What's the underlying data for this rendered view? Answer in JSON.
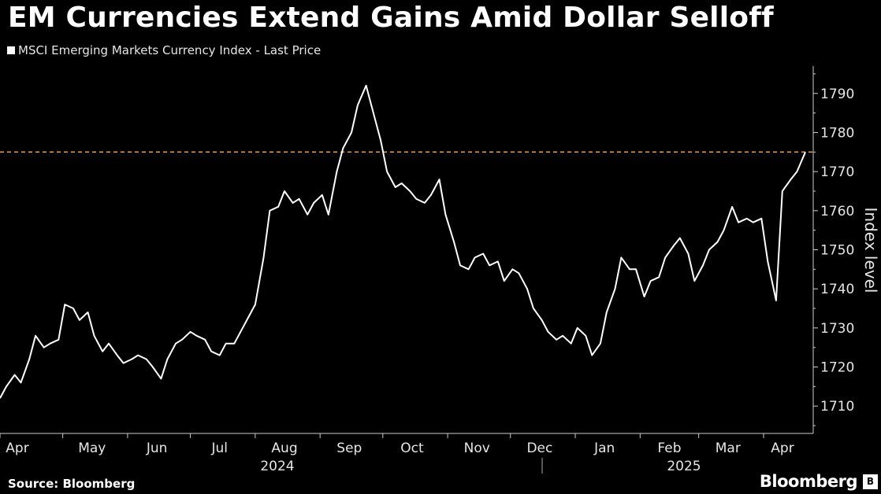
{
  "header": {
    "title": "EM Currencies Extend Gains Amid Dollar Selloff"
  },
  "footer": {
    "source": "Source: Bloomberg",
    "brand": "Bloomberg"
  },
  "colors": {
    "background": "#000000",
    "line": "#ffffff",
    "reference_line": "#e89a52",
    "axis": "#cccccc"
  },
  "chart_data": {
    "type": "line",
    "title": "EM Currencies Extend Gains Amid Dollar Selloff",
    "legend": [
      "MSCI Emerging Markets Currency Index - Last Price"
    ],
    "legend_position": "top-left",
    "ylabel": "Index level",
    "y_axis_side": "right",
    "ylim": [
      1703,
      1797
    ],
    "y_ticks": [
      1710,
      1720,
      1730,
      1740,
      1750,
      1760,
      1770,
      1780,
      1790
    ],
    "grid": false,
    "x_month_labels": [
      "Apr",
      "May",
      "Jun",
      "Jul",
      "Aug",
      "Sep",
      "Oct",
      "Nov",
      "Dec",
      "Jan",
      "Feb",
      "Mar",
      "Apr"
    ],
    "x_year_labels": [
      "2024",
      "2025"
    ],
    "reference_line": {
      "y": 1775,
      "style": "dashed"
    },
    "series": [
      {
        "name": "MSCI Emerging Markets Currency Index - Last Price",
        "x": [
          "2024-04-01",
          "2024-04-04",
          "2024-04-08",
          "2024-04-11",
          "2024-04-15",
          "2024-04-18",
          "2024-04-22",
          "2024-04-25",
          "2024-04-29",
          "2024-05-02",
          "2024-05-06",
          "2024-05-09",
          "2024-05-13",
          "2024-05-16",
          "2024-05-20",
          "2024-05-23",
          "2024-05-27",
          "2024-05-30",
          "2024-06-03",
          "2024-06-06",
          "2024-06-10",
          "2024-06-13",
          "2024-06-17",
          "2024-06-20",
          "2024-06-24",
          "2024-06-27",
          "2024-07-01",
          "2024-07-04",
          "2024-07-08",
          "2024-07-11",
          "2024-07-15",
          "2024-07-18",
          "2024-07-22",
          "2024-07-25",
          "2024-07-29",
          "2024-08-01",
          "2024-08-05",
          "2024-08-08",
          "2024-08-12",
          "2024-08-15",
          "2024-08-19",
          "2024-08-22",
          "2024-08-26",
          "2024-08-29",
          "2024-09-02",
          "2024-09-05",
          "2024-09-09",
          "2024-09-12",
          "2024-09-16",
          "2024-09-19",
          "2024-09-23",
          "2024-09-26",
          "2024-09-30",
          "2024-10-03",
          "2024-10-07",
          "2024-10-10",
          "2024-10-14",
          "2024-10-17",
          "2024-10-21",
          "2024-10-24",
          "2024-10-28",
          "2024-10-31",
          "2024-11-04",
          "2024-11-07",
          "2024-11-11",
          "2024-11-14",
          "2024-11-18",
          "2024-11-21",
          "2024-11-25",
          "2024-11-28",
          "2024-12-02",
          "2024-12-05",
          "2024-12-09",
          "2024-12-12",
          "2024-12-16",
          "2024-12-19",
          "2024-12-23",
          "2024-12-26",
          "2024-12-30",
          "2025-01-02",
          "2025-01-06",
          "2025-01-09",
          "2025-01-13",
          "2025-01-16",
          "2025-01-20",
          "2025-01-23",
          "2025-01-27",
          "2025-01-30",
          "2025-02-03",
          "2025-02-06",
          "2025-02-10",
          "2025-02-13",
          "2025-02-17",
          "2025-02-20",
          "2025-02-24",
          "2025-02-27",
          "2025-03-03",
          "2025-03-06",
          "2025-03-10",
          "2025-03-13",
          "2025-03-17",
          "2025-03-20",
          "2025-03-24",
          "2025-03-27",
          "2025-03-31",
          "2025-04-03",
          "2025-04-07",
          "2025-04-10",
          "2025-04-14",
          "2025-04-17",
          "2025-04-21"
        ],
        "values": [
          1712,
          1715,
          1718,
          1716,
          1722,
          1728,
          1725,
          1726,
          1727,
          1736,
          1735,
          1732,
          1734,
          1728,
          1724,
          1726,
          1723,
          1721,
          1722,
          1723,
          1722,
          1720,
          1717,
          1722,
          1726,
          1727,
          1729,
          1728,
          1727,
          1724,
          1723,
          1726,
          1726,
          1729,
          1733,
          1736,
          1748,
          1760,
          1761,
          1765,
          1762,
          1763,
          1759,
          1762,
          1764,
          1759,
          1770,
          1776,
          1780,
          1787,
          1792,
          1786,
          1778,
          1770,
          1766,
          1767,
          1765,
          1763,
          1762,
          1764,
          1768,
          1759,
          1752,
          1746,
          1745,
          1748,
          1749,
          1746,
          1747,
          1742,
          1745,
          1744,
          1740,
          1735,
          1732,
          1729,
          1727,
          1728,
          1726,
          1730,
          1728,
          1723,
          1726,
          1734,
          1740,
          1748,
          1745,
          1745,
          1738,
          1742,
          1743,
          1748,
          1751,
          1753,
          1749,
          1742,
          1746,
          1750,
          1752,
          1755,
          1761,
          1757,
          1758,
          1757,
          1758,
          1747,
          1737,
          1765,
          1768,
          1770,
          1775
        ]
      }
    ]
  }
}
